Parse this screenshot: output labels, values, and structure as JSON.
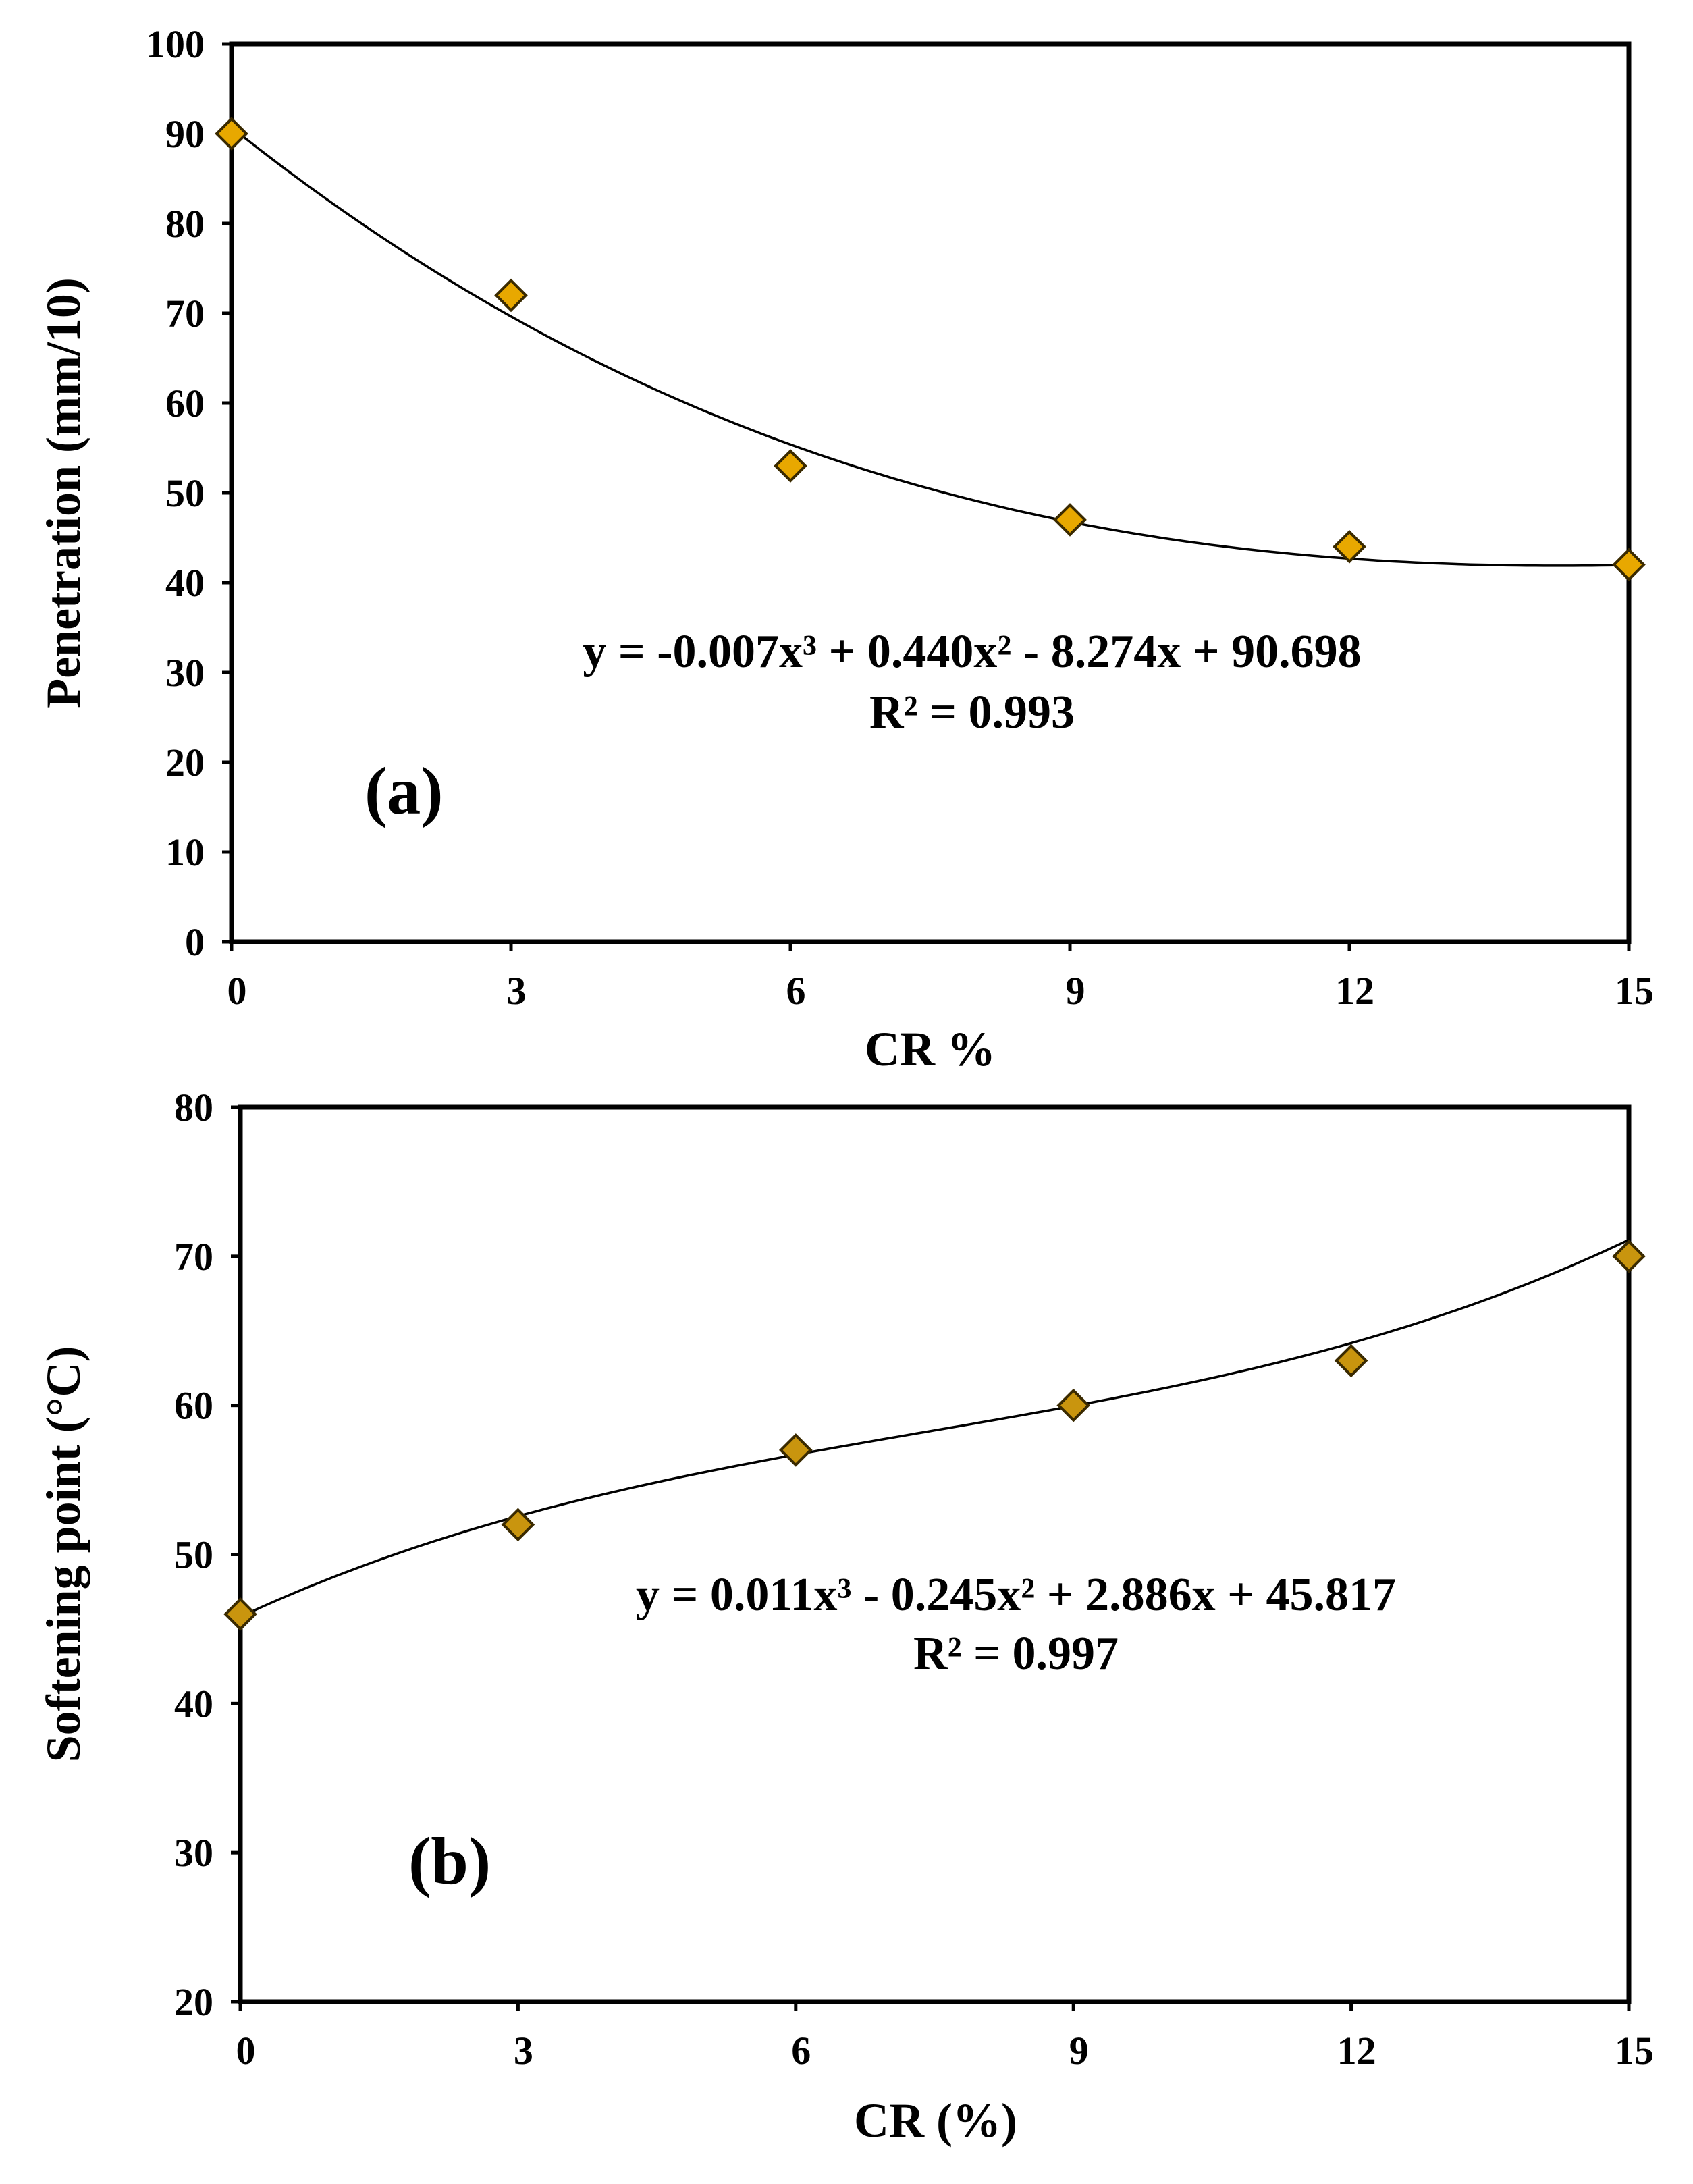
{
  "chart_data": [
    {
      "type": "scatter",
      "panel_label": "(a)",
      "xlabel": "CR %",
      "ylabel": "Penetration (mm/10)",
      "xlim": [
        0,
        15
      ],
      "ylim": [
        0,
        100
      ],
      "x_ticks": [
        0,
        3,
        6,
        9,
        12,
        15
      ],
      "y_ticks": [
        0,
        10,
        20,
        30,
        40,
        50,
        60,
        70,
        80,
        90,
        100
      ],
      "marker_color": "#E8A800",
      "series": [
        {
          "name": "Penetration",
          "x": [
            0,
            3,
            6,
            9,
            12,
            15
          ],
          "y": [
            90,
            72,
            53,
            47,
            44,
            42
          ]
        }
      ],
      "trendline": {
        "type": "polynomial",
        "order": 3,
        "coefficients": [
          -0.007,
          0.44,
          -8.274,
          90.698
        ],
        "equation": "y = -0.007x³ + 0.440x² - 8.274x + 90.698",
        "r_squared": "R² = 0.993"
      }
    },
    {
      "type": "scatter",
      "panel_label": "(b)",
      "xlabel": "CR (%)",
      "ylabel": "Softening point (°C)",
      "xlim": [
        0,
        15
      ],
      "ylim": [
        20,
        80
      ],
      "x_ticks": [
        0,
        3,
        6,
        9,
        12,
        15
      ],
      "y_ticks": [
        20,
        30,
        40,
        50,
        60,
        70,
        80
      ],
      "marker_color": "#C9950E",
      "series": [
        {
          "name": "Softening point",
          "x": [
            0,
            3,
            6,
            9,
            12,
            15
          ],
          "y": [
            46,
            52,
            57,
            60,
            63,
            70
          ]
        }
      ],
      "trendline": {
        "type": "polynomial",
        "order": 3,
        "coefficients": [
          0.011,
          -0.245,
          2.886,
          45.817
        ],
        "equation": "y = 0.011x³ - 0.245x² + 2.886x + 45.817",
        "r_squared": "R² = 0.997"
      }
    }
  ]
}
